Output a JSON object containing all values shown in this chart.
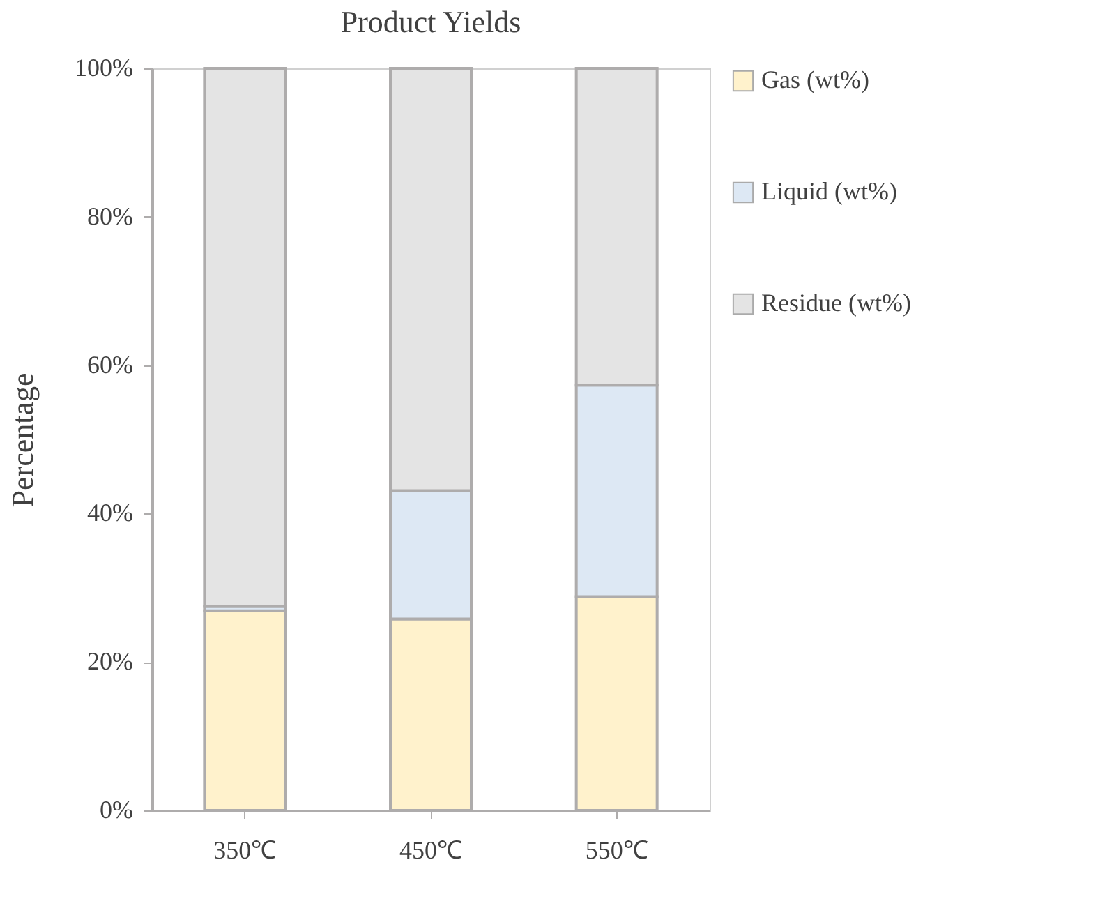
{
  "chart_data": {
    "type": "bar",
    "title": "Product Yields",
    "ylabel": "Percentage",
    "stacked": true,
    "categories": [
      "350℃",
      "450℃",
      "550℃"
    ],
    "series": [
      {
        "name": "Gas (wt%)",
        "color": "#fff2cc",
        "values": [
          26.9,
          25.8,
          28.8
        ]
      },
      {
        "name": "Liquid (wt%)",
        "color": "#dde8f4",
        "values": [
          0.6,
          17.3,
          28.5
        ]
      },
      {
        "name": "Residue (wt%)",
        "color": "#e4e4e4",
        "values": [
          72.5,
          56.9,
          42.7
        ]
      }
    ],
    "ylim": [
      0,
      100
    ],
    "yticks": [
      {
        "value": 0,
        "label": "0%"
      },
      {
        "value": 20,
        "label": "20%"
      },
      {
        "value": 40,
        "label": "40%"
      },
      {
        "value": 60,
        "label": "60%"
      },
      {
        "value": 80,
        "label": "80%"
      },
      {
        "value": 100,
        "label": "100%"
      }
    ],
    "grid": false,
    "legend": "right"
  }
}
